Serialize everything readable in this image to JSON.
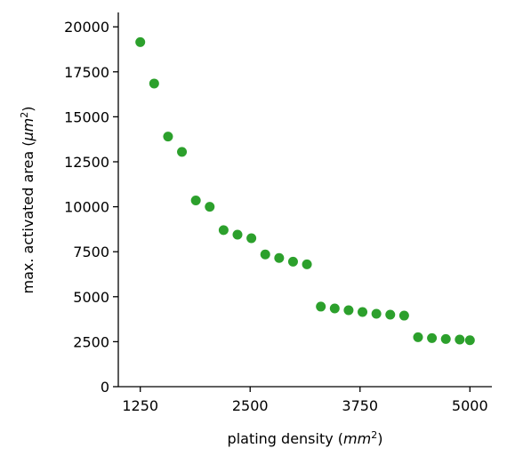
{
  "chart_data": {
    "type": "scatter",
    "xlabel": "plating density (mm²)",
    "ylabel": "max. activated area (μm²)",
    "xlim": [
      1000,
      5250
    ],
    "ylim": [
      0,
      20800
    ],
    "xticks": [
      1250,
      2500,
      3750,
      5000
    ],
    "xtick_labels": [
      "1250",
      "2500",
      "3750",
      "5000"
    ],
    "yticks": [
      0,
      2500,
      5000,
      7500,
      10000,
      12500,
      15000,
      17500,
      20000
    ],
    "ytick_labels": [
      "0",
      "2500",
      "5000",
      "7500",
      "10000",
      "12500",
      "15000",
      "17500",
      "20000"
    ],
    "grid": false,
    "marker_color": "#2ca02c",
    "series": [
      {
        "x": [
          1250,
          1408,
          1566,
          1724,
          1882,
          2040,
          2198,
          2356,
          2514,
          2672,
          2830,
          2988,
          3146,
          3304,
          3462,
          3620,
          3778,
          3936,
          4094,
          4252,
          4410,
          4568,
          4726,
          4884,
          5000
        ],
        "y": [
          19150,
          16850,
          13900,
          13050,
          10350,
          10000,
          8700,
          8450,
          8250,
          7350,
          7150,
          6950,
          6800,
          4450,
          4350,
          4250,
          4150,
          4050,
          4000,
          3950,
          2750,
          2700,
          2650,
          2620,
          2580
        ]
      }
    ]
  }
}
